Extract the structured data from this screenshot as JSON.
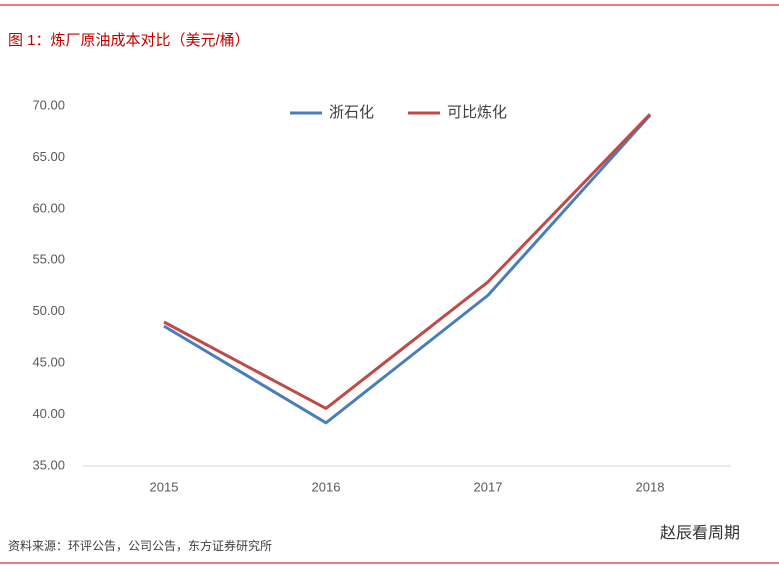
{
  "chart_data": {
    "type": "line",
    "title": "图 1：炼厂原油成本对比（美元/桶）",
    "categories": [
      "2015",
      "2016",
      "2017",
      "2018"
    ],
    "series": [
      {
        "name": "浙石化",
        "color": "#4a7ebb",
        "values": [
          48.6,
          39.2,
          51.6,
          69.1
        ]
      },
      {
        "name": "可比炼化",
        "color": "#be4b48",
        "values": [
          49.0,
          40.6,
          52.9,
          69.2
        ]
      }
    ],
    "ylim": [
      35,
      70
    ],
    "yticks": [
      {
        "value": 35,
        "label": "35.00"
      },
      {
        "value": 40,
        "label": "40.00"
      },
      {
        "value": 45,
        "label": "45.00"
      },
      {
        "value": 50,
        "label": "50.00"
      },
      {
        "value": 55,
        "label": "55.00"
      },
      {
        "value": 60,
        "label": "60.00"
      },
      {
        "value": 65,
        "label": "65.00"
      },
      {
        "value": 70,
        "label": "70.00"
      }
    ],
    "source": "资料来源：环评公告，公司公告，东方证券研究所",
    "watermark": "赵辰看周期"
  }
}
